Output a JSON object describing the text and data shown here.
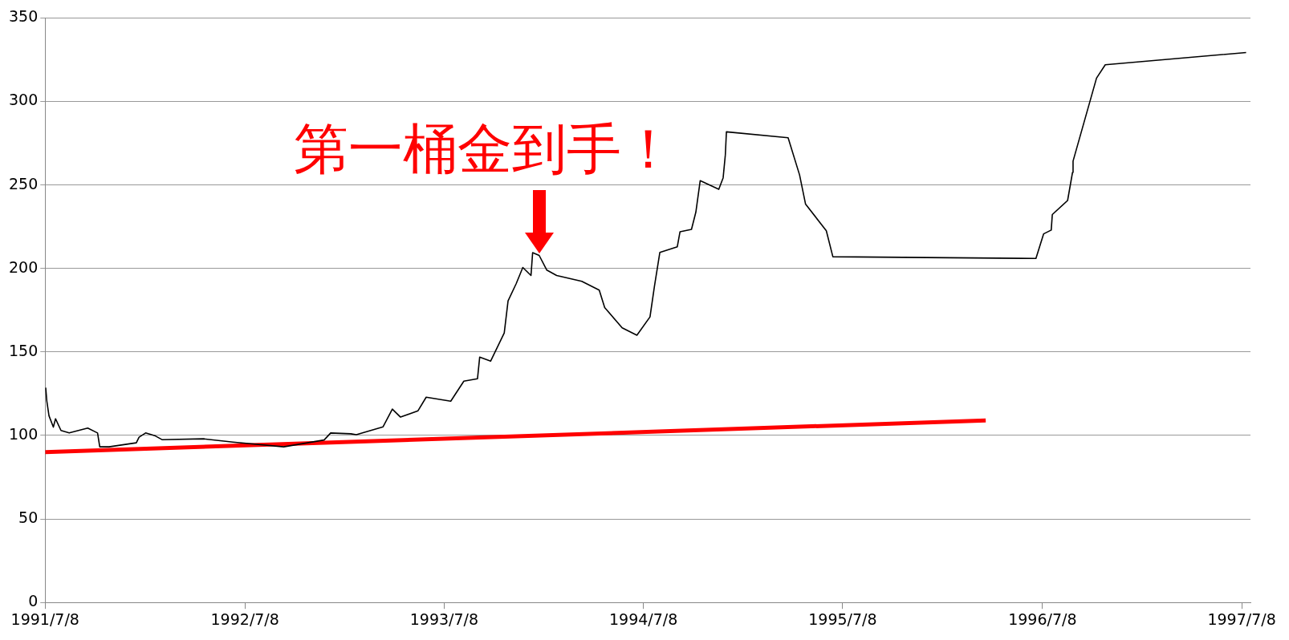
{
  "chart_data": {
    "type": "line",
    "annotations": [
      {
        "text": "第一桶金到手！",
        "x": "1993-12-17",
        "y": 210
      }
    ],
    "xlim": [
      "1991-07-08",
      "1997-07-24"
    ],
    "xticks": [
      {
        "value": "1991-07-08",
        "label": "1991/7/8"
      },
      {
        "value": "1992-07-08",
        "label": "1992/7/8"
      },
      {
        "value": "1993-07-08",
        "label": "1993/7/8"
      },
      {
        "value": "1994-07-08",
        "label": "1994/7/8"
      },
      {
        "value": "1995-07-08",
        "label": "1995/7/8"
      },
      {
        "value": "1996-07-08",
        "label": "1996/7/8"
      },
      {
        "value": "1997-07-08",
        "label": "1997/7/8"
      }
    ],
    "ylim": [
      0,
      350
    ],
    "yticks": [
      0,
      50,
      100,
      150,
      200,
      250,
      300,
      350
    ],
    "grid": "y",
    "marker": "none",
    "line_style": "solid",
    "series": [
      {
        "color": "#000000",
        "x": [
          "1991-07-09",
          "1991-07-11",
          "1991-07-15",
          "1991-07-23",
          "1991-07-27",
          "1991-08-06",
          "1991-08-21",
          "1991-09-24",
          "1991-10-12",
          "1991-10-16",
          "1991-11-02",
          "1991-12-22",
          "1991-12-27",
          "1992-01-08",
          "1992-01-26",
          "1992-02-07",
          "1992-04-23",
          "1992-06-16",
          "1992-09-17",
          "1992-11-30",
          "1992-12-12",
          "1993-01-18",
          "1993-01-28",
          "1993-03-18",
          "1993-04-04",
          "1993-04-19",
          "1993-05-21",
          "1993-06-05",
          "1993-07-20",
          "1993-08-13",
          "1993-09-07",
          "1993-09-11",
          "1993-10-01",
          "1993-10-26",
          "1993-11-02",
          "1993-11-17",
          "1993-11-29",
          "1993-12-14",
          "1993-12-17",
          "1993-12-29",
          "1994-01-12",
          "1994-01-30",
          "1994-03-17",
          "1994-04-18",
          "1994-04-28",
          "1994-05-30",
          "1994-06-26",
          "1994-07-20",
          "1994-07-28",
          "1994-08-07",
          "1994-09-08",
          "1994-09-13",
          "1994-10-04",
          "1994-10-12",
          "1994-10-20",
          "1994-11-23",
          "1994-12-01",
          "1994-12-05",
          "1994-12-07",
          "1995-03-30",
          "1995-04-20",
          "1995-05-01",
          "1995-06-08",
          "1995-06-20",
          "1996-06-26",
          "1996-07-10",
          "1996-07-24",
          "1996-07-26",
          "1996-08-23",
          "1996-09-01",
          "1996-09-02",
          "1996-10-15",
          "1996-10-31",
          "1997-07-16"
        ],
        "values": [
          128.6,
          120.7,
          111.8,
          105,
          110,
          103,
          101.5,
          104.4,
          101.5,
          93.2,
          93.2,
          95.6,
          99,
          101.5,
          99.7,
          97.5,
          98,
          96,
          93.2,
          97.3,
          101.5,
          101,
          100.5,
          105.2,
          115.8,
          111,
          114.8,
          122.9,
          120.5,
          132.5,
          134,
          146.9,
          144.5,
          161.4,
          180.6,
          191,
          200.6,
          195.8,
          209.5,
          207.8,
          199,
          195.8,
          192.3,
          187,
          176.6,
          164.5,
          160,
          171,
          189,
          209.6,
          213,
          222,
          223.4,
          233.7,
          252.6,
          247.4,
          254.3,
          268,
          281.8,
          278.3,
          256,
          238.5,
          222.6,
          207,
          206,
          220.7,
          223,
          232.3,
          240.7,
          257.5,
          264.3,
          314,
          322,
          329.3
        ]
      },
      {
        "type": "line",
        "color": "#ff0000",
        "x": [
          "1991-07-08",
          "1996-03-26"
        ],
        "values": [
          90,
          109
        ]
      }
    ]
  }
}
